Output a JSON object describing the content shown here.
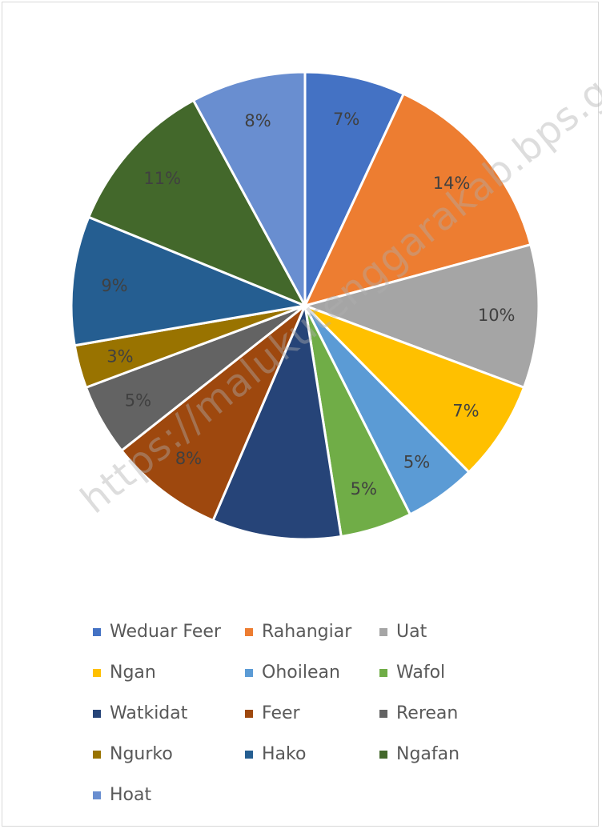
{
  "chart_data": {
    "type": "pie",
    "title": "",
    "legend_position": "bottom",
    "categories": [
      "Weduar Feer",
      "Rahangiar",
      "Uat",
      "Ngan",
      "Ohoilean",
      "Wafol",
      "Watkidat",
      "Feer",
      "Rerean",
      "Ngurko",
      "Hako",
      "Ngafan",
      "Hoat"
    ],
    "values": [
      7,
      14,
      10,
      7,
      5,
      5,
      9,
      8,
      5,
      3,
      9,
      11,
      8
    ],
    "labels": [
      "7%",
      "14%",
      "10%",
      "7%",
      "5%",
      "5%",
      "",
      "8%",
      "5%",
      "3%",
      "9%",
      "11%",
      "8%"
    ],
    "colors": [
      "#4472c4",
      "#ed7d31",
      "#a5a5a5",
      "#ffc000",
      "#5b9bd5",
      "#70ad47",
      "#264478",
      "#9e480e",
      "#636363",
      "#997300",
      "#255e91",
      "#43682b",
      "#698ed0"
    ]
  },
  "watermark": "https://malukutenggarakab.bps.go.id"
}
